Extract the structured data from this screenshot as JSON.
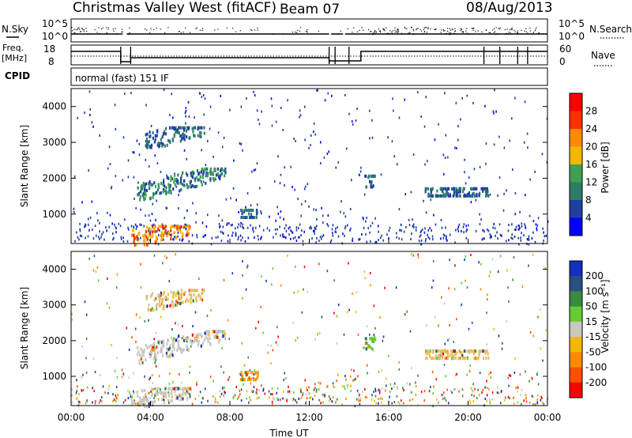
{
  "header": {
    "title": "Christmas Valley West (fitACF)",
    "beam": "Beam 07",
    "date": "08/Aug/2013"
  },
  "params": {
    "nsky_label": "N.Sky",
    "nsearch_label": "N.Search",
    "nsky_top": "10^5",
    "nsky_bottom": "10^0",
    "nsearch_top": "10^5",
    "nsearch_bottom": "10^0",
    "freq_label": "Freq.",
    "freq_unit": "[MHz]",
    "freq_top": "18",
    "freq_bottom": "8",
    "nave_label": "Nave",
    "nave_top": "60",
    "nave_bottom": "0",
    "cpid_label": "CPID",
    "cpid_value": "normal (fast) 151 IF"
  },
  "chart_data": [
    {
      "type": "heatmap",
      "name": "power",
      "xlabel": "Time UT",
      "ylabel": "Slant Range [km]",
      "x_range_hours": [
        0,
        24
      ],
      "ylim": [
        180,
        4500
      ],
      "yticks": [
        1000,
        2000,
        3000,
        4000
      ],
      "colorbar_label": "Power [dB]",
      "colorbar_ticks": [
        "4",
        "8",
        "12",
        "16",
        "20",
        "24",
        "28"
      ],
      "colorbar_colors": [
        "#0000ff",
        "#1f3fa0",
        "#2e7d6a",
        "#3fa050",
        "#f2b800",
        "#ff8a00",
        "#ff3000",
        "#ff0000"
      ],
      "echo_regions": [
        {
          "t0": 3.7,
          "t1": 6.7,
          "r0": 2900,
          "r1": 3450,
          "level": 1
        },
        {
          "t0": 3.3,
          "t1": 7.8,
          "r0": 1300,
          "r1": 2300,
          "level": 2
        },
        {
          "t0": 3.0,
          "t1": 6.0,
          "r0": 180,
          "r1": 700,
          "level": 4
        },
        {
          "t0": 8.5,
          "t1": 9.4,
          "r0": 950,
          "r1": 1150,
          "level": 1
        },
        {
          "t0": 14.7,
          "t1": 15.3,
          "r0": 1800,
          "r1": 2100,
          "level": 1
        },
        {
          "t0": 17.8,
          "t1": 21.0,
          "r0": 1550,
          "r1": 1750,
          "level": 1
        }
      ]
    },
    {
      "type": "heatmap",
      "name": "velocity",
      "xlabel": "Time UT",
      "ylabel": "Slant Range [km]",
      "x_range_hours": [
        0,
        24
      ],
      "ylim": [
        180,
        4500
      ],
      "yticks": [
        1000,
        2000,
        3000,
        4000
      ],
      "colorbar_label": "Velocity [m s⁻¹]",
      "colorbar_ticks": [
        "200",
        "100",
        "50",
        "15",
        "-15",
        "-50",
        "-100",
        "-200"
      ],
      "colorbar_colors": [
        "#1030c0",
        "#2a5080",
        "#3a8a40",
        "#66cc33",
        "#c8c8c0",
        "#f2b800",
        "#ff8a00",
        "#ff5000",
        "#ff0000"
      ],
      "echo_regions": [
        {
          "t0": 3.7,
          "t1": 6.7,
          "r0": 2900,
          "r1": 3450,
          "color": "#e6c060"
        },
        {
          "t0": 3.3,
          "t1": 7.8,
          "r0": 1300,
          "r1": 2300,
          "color": "#c8c8c0"
        },
        {
          "t0": 3.0,
          "t1": 6.0,
          "r0": 180,
          "r1": 700,
          "color": "#c8c8c0"
        },
        {
          "t0": 8.5,
          "t1": 9.4,
          "r0": 950,
          "r1": 1150,
          "color": "#ff9a00"
        },
        {
          "t0": 14.7,
          "t1": 15.3,
          "r0": 1800,
          "r1": 2100,
          "color": "#66cc33"
        },
        {
          "t0": 17.8,
          "t1": 21.0,
          "r0": 1550,
          "r1": 1750,
          "color": "#e6c060"
        }
      ]
    }
  ],
  "time_axis": {
    "ticks": [
      "00:00",
      "04:00",
      "08:00",
      "12:00",
      "16:00",
      "20:00",
      "00:00"
    ],
    "label": "Time UT"
  }
}
